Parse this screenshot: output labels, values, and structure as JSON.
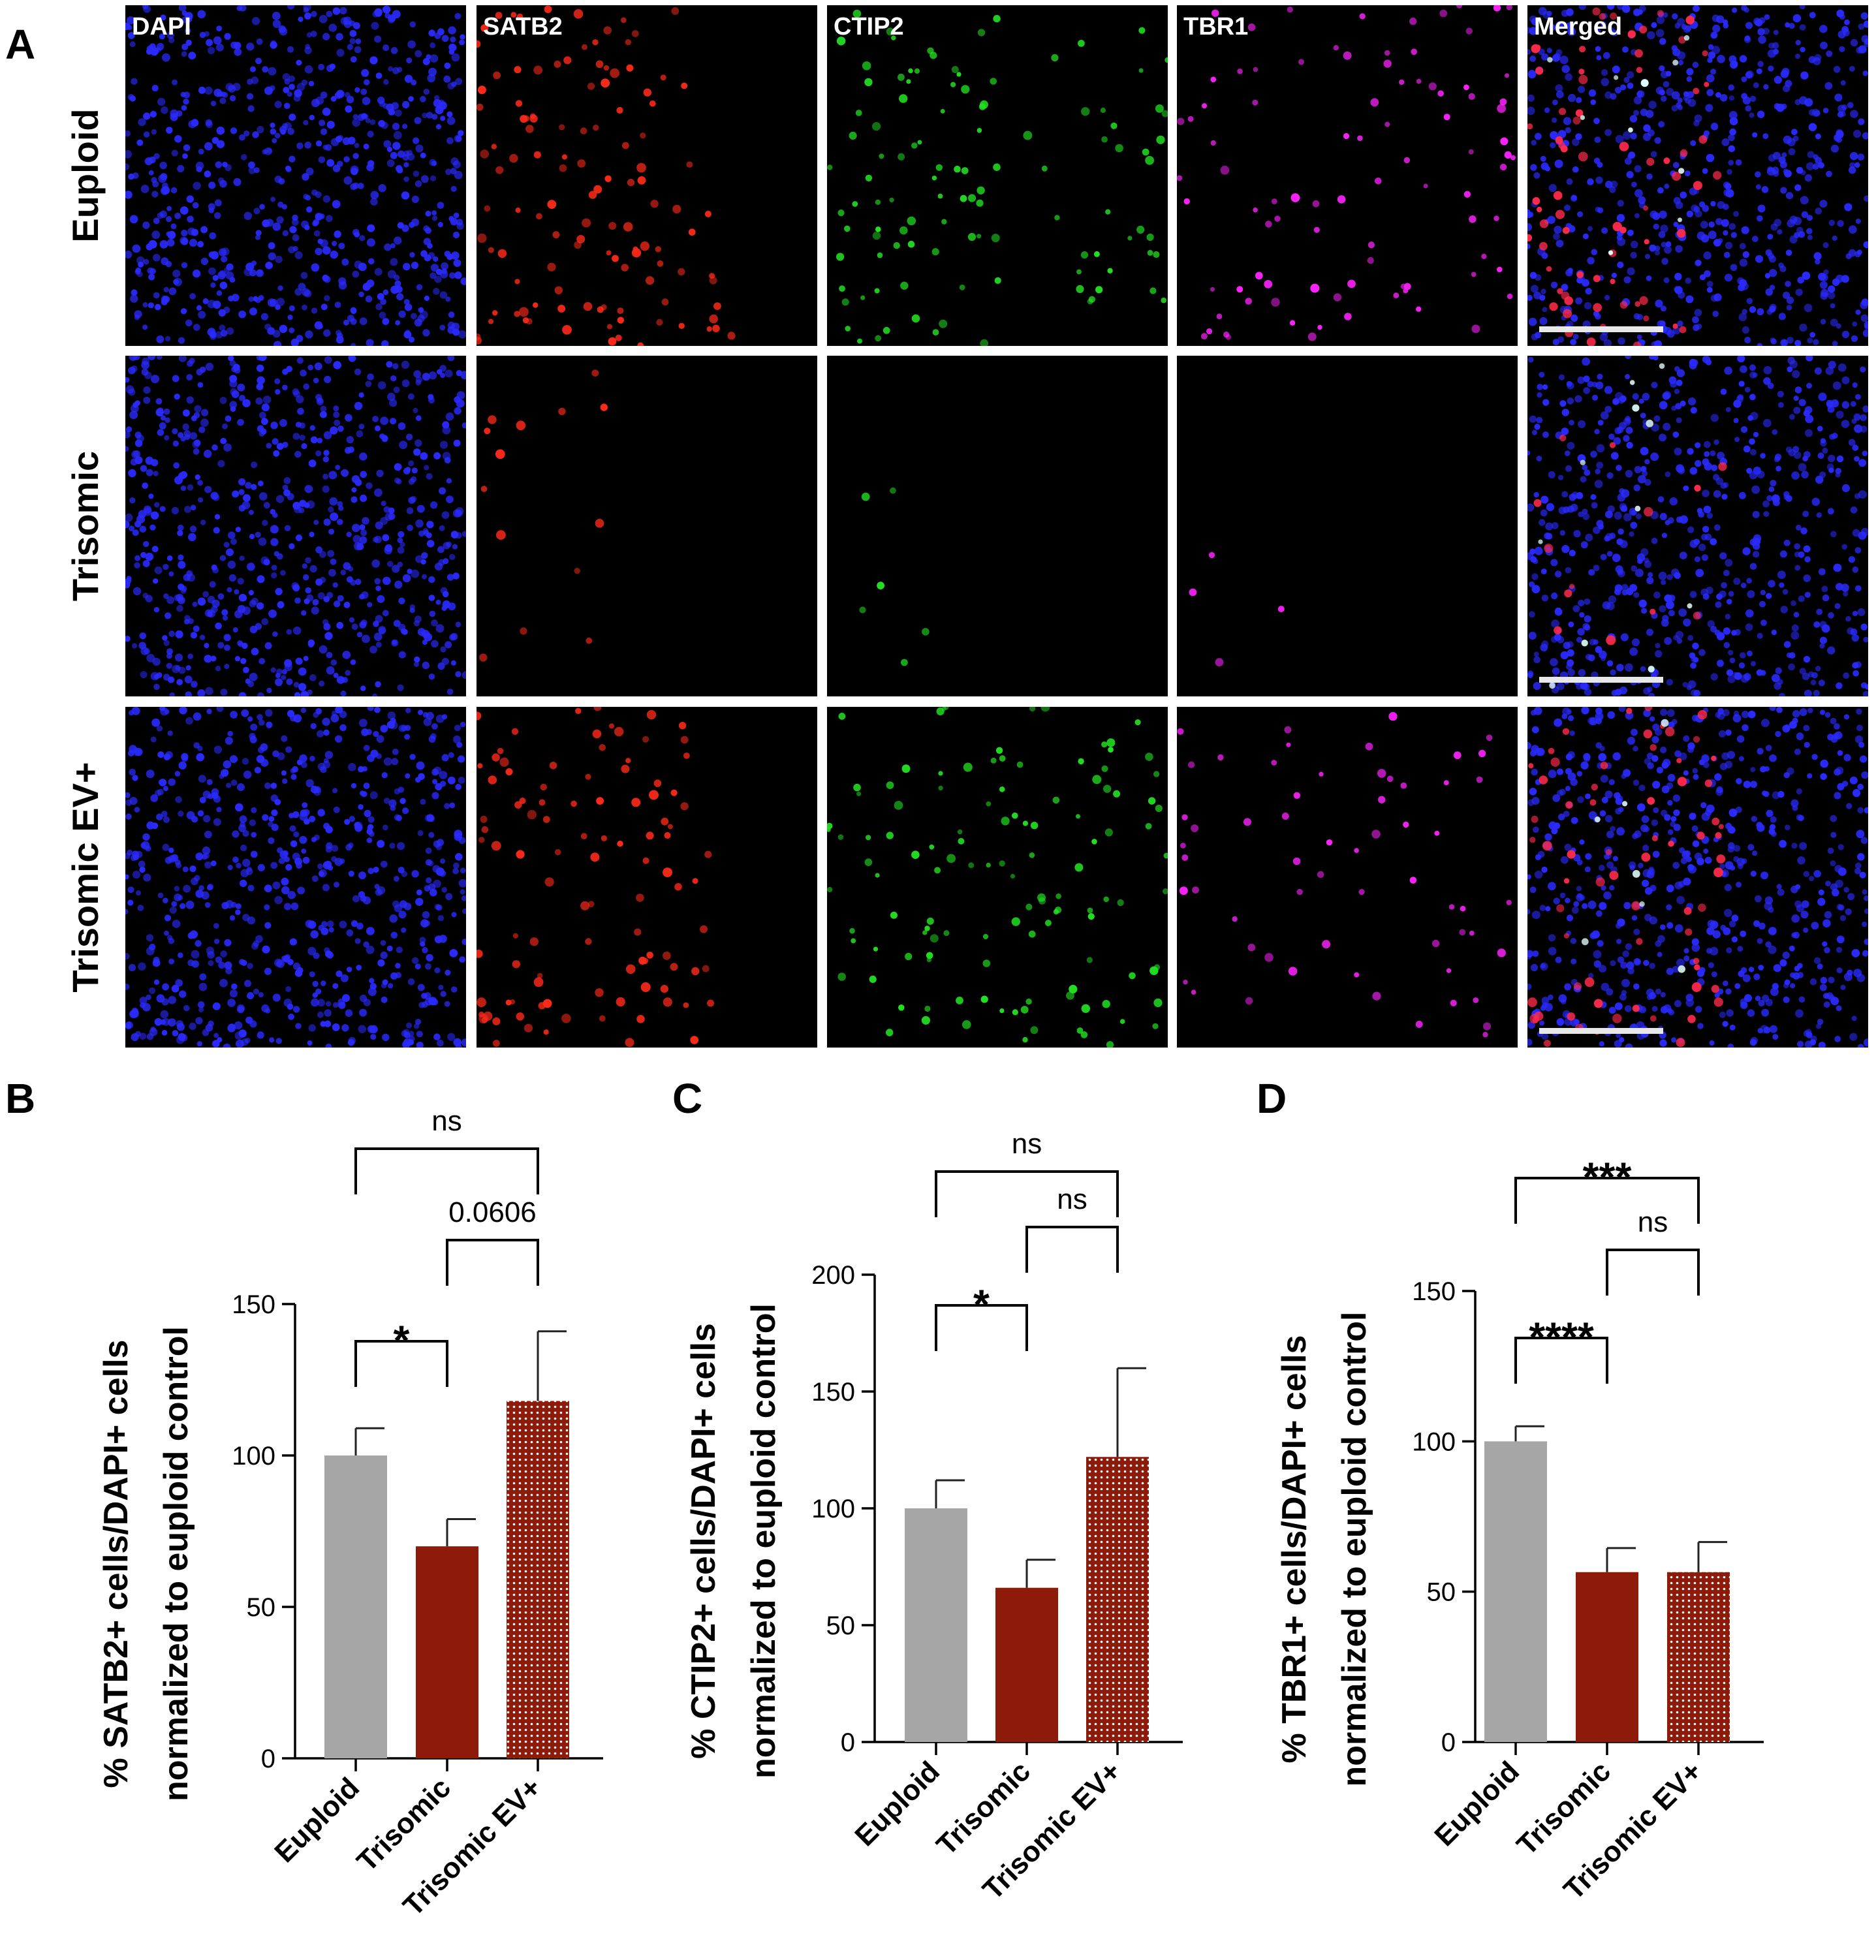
{
  "panel_labels": {
    "a": "A",
    "b": "B",
    "c": "C",
    "d": "D"
  },
  "micrographs": {
    "channels": [
      "DAPI",
      "SATB2",
      "CTIP2",
      "TBR1",
      "Merged"
    ],
    "channel_colors": [
      "#1a1aff",
      "#ff2020",
      "#20e020",
      "#ff20ff",
      "mixed"
    ],
    "rows": [
      "Euploid",
      "Trisomic",
      "Trisomic EV+"
    ],
    "scale_bar_color": "#e8e8e8"
  },
  "chart_data": [
    {
      "type": "bar",
      "panel": "B",
      "categories": [
        "Euploid",
        "Trisomic",
        "Trisomic EV+"
      ],
      "values": [
        100,
        70,
        118
      ],
      "errors": [
        9,
        9,
        23
      ],
      "fills": [
        "solid-grey",
        "solid-red",
        "dotted-red"
      ],
      "colors": [
        "#a6a6a6",
        "#8e1a0a",
        "#8e1a0a"
      ],
      "ylabel_line1": "% SATB2+ cells/DAPI+ cells",
      "ylabel_line2": "normalized to euploid control",
      "ylim": [
        0,
        150
      ],
      "yticks": [
        0,
        50,
        100,
        150
      ],
      "grid": false,
      "comparisons": [
        {
          "from": 0,
          "to": 1,
          "label": "*"
        },
        {
          "from": 1,
          "to": 2,
          "label": "0.0606"
        },
        {
          "from": 0,
          "to": 2,
          "label": "ns"
        }
      ]
    },
    {
      "type": "bar",
      "panel": "C",
      "categories": [
        "Euploid",
        "Trisomic",
        "Trisomic EV+"
      ],
      "values": [
        100,
        66,
        122
      ],
      "errors": [
        12,
        12,
        38
      ],
      "fills": [
        "solid-grey",
        "solid-red",
        "dotted-red"
      ],
      "colors": [
        "#a6a6a6",
        "#8e1a0a",
        "#8e1a0a"
      ],
      "ylabel_line1": "% CTIP2+ cells/DAPI+ cells",
      "ylabel_line2": "normalized to euploid control",
      "ylim": [
        0,
        200
      ],
      "yticks": [
        0,
        50,
        100,
        150,
        200
      ],
      "grid": false,
      "comparisons": [
        {
          "from": 0,
          "to": 1,
          "label": "*"
        },
        {
          "from": 1,
          "to": 2,
          "label": "ns"
        },
        {
          "from": 0,
          "to": 2,
          "label": "ns"
        }
      ]
    },
    {
      "type": "bar",
      "panel": "D",
      "categories": [
        "Euploid",
        "Trisomic",
        "Trisomic EV+"
      ],
      "values": [
        100,
        56.5,
        56.5
      ],
      "errors": [
        5,
        8,
        10
      ],
      "fills": [
        "solid-grey",
        "solid-red",
        "dotted-red"
      ],
      "colors": [
        "#a6a6a6",
        "#8e1a0a",
        "#8e1a0a"
      ],
      "ylabel_line1": "% TBR1+ cells/DAPI+ cells",
      "ylabel_line2": "normalized to euploid control",
      "ylim": [
        0,
        150
      ],
      "yticks": [
        0,
        50,
        100,
        150
      ],
      "grid": false,
      "comparisons": [
        {
          "from": 0,
          "to": 1,
          "label": "****"
        },
        {
          "from": 1,
          "to": 2,
          "label": "ns"
        },
        {
          "from": 0,
          "to": 2,
          "label": "***"
        }
      ]
    }
  ]
}
